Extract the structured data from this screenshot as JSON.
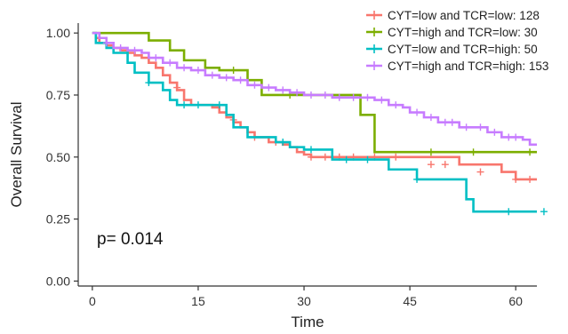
{
  "chart_data": {
    "type": "line",
    "title": "",
    "xlabel": "Time",
    "ylabel": "Overall Survival",
    "xlim": [
      -2,
      63
    ],
    "ylim": [
      -0.02,
      1.04
    ],
    "xticks": [
      0,
      15,
      30,
      45,
      60
    ],
    "yticks": [
      0.0,
      0.25,
      0.5,
      0.75,
      1.0
    ],
    "ytick_labels": [
      "0.00",
      "0.25",
      "0.50",
      "0.75",
      "1.00"
    ],
    "grid": false,
    "legend_position": "top-right",
    "annotations": [
      {
        "text": "p= 0.014",
        "x": 0,
        "y": 0.25
      }
    ],
    "series": [
      {
        "name": "CYT=low and TCR=low: 128",
        "color": "#F8766D",
        "steps": [
          [
            0,
            1.0
          ],
          [
            0.5,
            0.98
          ],
          [
            1,
            0.96
          ],
          [
            2,
            0.95
          ],
          [
            3,
            0.94
          ],
          [
            4,
            0.93
          ],
          [
            5,
            0.92
          ],
          [
            6,
            0.91
          ],
          [
            7,
            0.9
          ],
          [
            8,
            0.88
          ],
          [
            9,
            0.86
          ],
          [
            10,
            0.83
          ],
          [
            11,
            0.8
          ],
          [
            12,
            0.77
          ],
          [
            13,
            0.73
          ],
          [
            14,
            0.71
          ],
          [
            17,
            0.7
          ],
          [
            18,
            0.68
          ],
          [
            19,
            0.66
          ],
          [
            20,
            0.64
          ],
          [
            21,
            0.62
          ],
          [
            22,
            0.6
          ],
          [
            23,
            0.58
          ],
          [
            25,
            0.56
          ],
          [
            27,
            0.55
          ],
          [
            28,
            0.54
          ],
          [
            29,
            0.52
          ],
          [
            30,
            0.51
          ],
          [
            31,
            0.5
          ],
          [
            45,
            0.5
          ],
          [
            52,
            0.47
          ],
          [
            58,
            0.44
          ],
          [
            60,
            0.41
          ],
          [
            63,
            0.41
          ]
        ],
        "censored": [
          [
            12,
            0.78
          ],
          [
            20,
            0.65
          ],
          [
            23,
            0.58
          ],
          [
            26,
            0.56
          ],
          [
            31,
            0.5
          ],
          [
            33,
            0.5
          ],
          [
            35,
            0.5
          ],
          [
            37,
            0.5
          ],
          [
            40,
            0.5
          ],
          [
            43,
            0.5
          ],
          [
            48,
            0.47
          ],
          [
            50,
            0.47
          ],
          [
            55,
            0.44
          ],
          [
            60,
            0.41
          ],
          [
            62,
            0.41
          ]
        ]
      },
      {
        "name": "CYT=high and TCR=low: 30",
        "color": "#7CAE00",
        "steps": [
          [
            0,
            1.0
          ],
          [
            8,
            0.97
          ],
          [
            11,
            0.93
          ],
          [
            13,
            0.89
          ],
          [
            16,
            0.86
          ],
          [
            18,
            0.85
          ],
          [
            22,
            0.81
          ],
          [
            24,
            0.75
          ],
          [
            38,
            0.67
          ],
          [
            40,
            0.52
          ],
          [
            63,
            0.52
          ]
        ],
        "censored": [
          [
            20,
            0.85
          ],
          [
            28,
            0.75
          ],
          [
            48,
            0.52
          ],
          [
            54,
            0.52
          ],
          [
            62,
            0.52
          ]
        ]
      },
      {
        "name": "CYT=low and TCR=high: 50",
        "color": "#00BFC4",
        "steps": [
          [
            0,
            1.0
          ],
          [
            0.5,
            0.96
          ],
          [
            2,
            0.94
          ],
          [
            3,
            0.92
          ],
          [
            5,
            0.88
          ],
          [
            6,
            0.84
          ],
          [
            8,
            0.8
          ],
          [
            10,
            0.77
          ],
          [
            11,
            0.73
          ],
          [
            12,
            0.71
          ],
          [
            19,
            0.67
          ],
          [
            20,
            0.62
          ],
          [
            22,
            0.58
          ],
          [
            26,
            0.56
          ],
          [
            28,
            0.54
          ],
          [
            30,
            0.53
          ],
          [
            34,
            0.49
          ],
          [
            42,
            0.45
          ],
          [
            46,
            0.41
          ],
          [
            53,
            0.33
          ],
          [
            54,
            0.28
          ],
          [
            63,
            0.28
          ]
        ],
        "censored": [
          [
            8,
            0.8
          ],
          [
            13,
            0.71
          ],
          [
            15,
            0.71
          ],
          [
            18,
            0.71
          ],
          [
            27,
            0.56
          ],
          [
            31,
            0.53
          ],
          [
            36,
            0.49
          ],
          [
            39,
            0.49
          ],
          [
            46,
            0.41
          ],
          [
            59,
            0.28
          ],
          [
            64,
            0.28
          ]
        ]
      },
      {
        "name": "CYT=high and TCR=high: 153",
        "color": "#C77CFF",
        "steps": [
          [
            0,
            1.0
          ],
          [
            1,
            0.98
          ],
          [
            2,
            0.96
          ],
          [
            3,
            0.94
          ],
          [
            5,
            0.93
          ],
          [
            7,
            0.92
          ],
          [
            8,
            0.9
          ],
          [
            10,
            0.88
          ],
          [
            12,
            0.86
          ],
          [
            14,
            0.85
          ],
          [
            16,
            0.83
          ],
          [
            18,
            0.82
          ],
          [
            20,
            0.81
          ],
          [
            22,
            0.79
          ],
          [
            24,
            0.78
          ],
          [
            26,
            0.77
          ],
          [
            28,
            0.76
          ],
          [
            30,
            0.75
          ],
          [
            32,
            0.75
          ],
          [
            34,
            0.74
          ],
          [
            40,
            0.73
          ],
          [
            42,
            0.71
          ],
          [
            44,
            0.7
          ],
          [
            45,
            0.68
          ],
          [
            47,
            0.66
          ],
          [
            49,
            0.64
          ],
          [
            52,
            0.62
          ],
          [
            56,
            0.6
          ],
          [
            58,
            0.58
          ],
          [
            61,
            0.57
          ],
          [
            62,
            0.55
          ],
          [
            63,
            0.55
          ]
        ],
        "censored": [
          [
            2,
            0.96
          ],
          [
            4,
            0.94
          ],
          [
            6,
            0.93
          ],
          [
            9,
            0.9
          ],
          [
            11,
            0.88
          ],
          [
            13,
            0.86
          ],
          [
            15,
            0.85
          ],
          [
            17,
            0.83
          ],
          [
            19,
            0.82
          ],
          [
            21,
            0.81
          ],
          [
            23,
            0.79
          ],
          [
            25,
            0.78
          ],
          [
            27,
            0.77
          ],
          [
            29,
            0.76
          ],
          [
            31,
            0.75
          ],
          [
            33,
            0.75
          ],
          [
            35,
            0.74
          ],
          [
            37,
            0.74
          ],
          [
            39,
            0.74
          ],
          [
            41,
            0.73
          ],
          [
            43,
            0.71
          ],
          [
            46,
            0.68
          ],
          [
            48,
            0.66
          ],
          [
            50,
            0.64
          ],
          [
            51,
            0.64
          ],
          [
            53,
            0.62
          ],
          [
            55,
            0.62
          ],
          [
            57,
            0.6
          ],
          [
            59,
            0.58
          ],
          [
            60,
            0.58
          ]
        ]
      }
    ]
  }
}
